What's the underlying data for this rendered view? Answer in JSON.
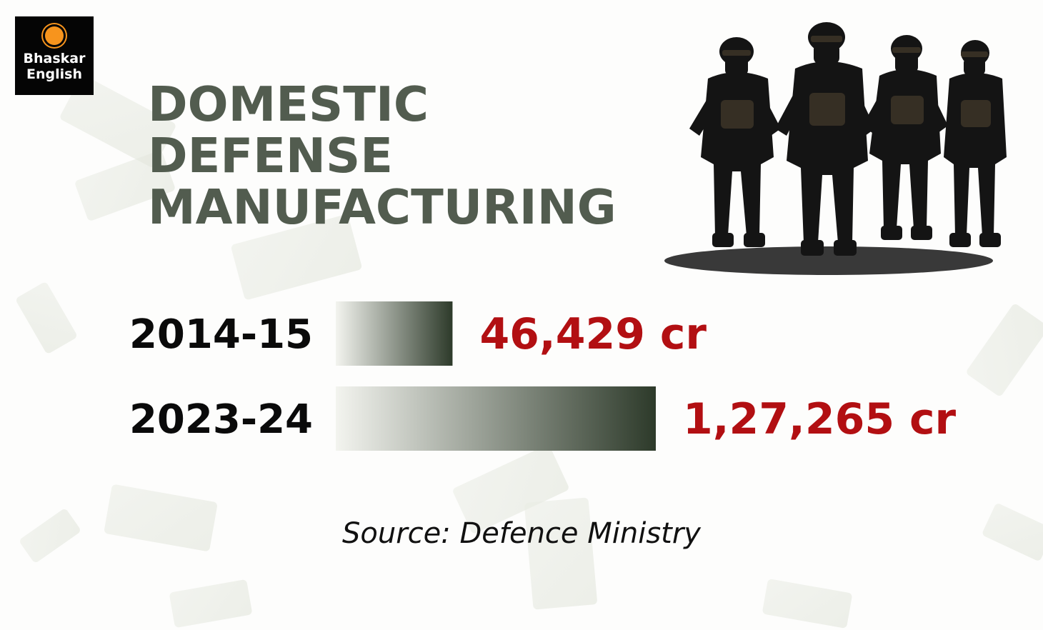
{
  "logo": {
    "text": "Bhaskar\nEnglish"
  },
  "colors": {
    "title": "#525c4f",
    "value_text": "#b20f12",
    "bar_start": "#f3f4ef",
    "bar_end": "#2d3a2a"
  },
  "chart_data": {
    "type": "bar",
    "orientation": "horizontal",
    "title_lines": [
      "DOMESTIC",
      "DEFENSE",
      "MANUFACTURING"
    ],
    "categories": [
      "2014-15",
      "2023-24"
    ],
    "values": [
      46429,
      127265
    ],
    "value_labels": [
      "46,429 cr",
      "1,27,265 cr"
    ],
    "unit": "cr",
    "grid": false,
    "legend": false,
    "source": "Source: Defence Ministry"
  }
}
